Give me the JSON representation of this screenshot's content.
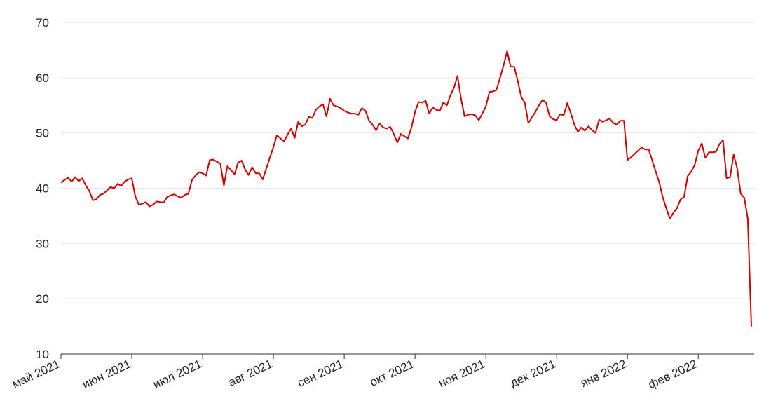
{
  "chart_data": {
    "type": "line",
    "color": "#d40000",
    "grid": true,
    "ylim": [
      10,
      70
    ],
    "yticks": [
      10,
      20,
      30,
      40,
      50,
      60,
      70
    ],
    "categories": [
      "май 2021",
      null,
      null,
      null,
      null,
      null,
      null,
      null,
      null,
      null,
      null,
      null,
      null,
      null,
      null,
      null,
      null,
      null,
      null,
      null,
      "июн 2021",
      null,
      null,
      null,
      null,
      null,
      null,
      null,
      null,
      null,
      null,
      null,
      null,
      null,
      null,
      null,
      null,
      null,
      null,
      null,
      "июл 2021",
      null,
      null,
      null,
      null,
      null,
      null,
      null,
      null,
      null,
      null,
      null,
      null,
      null,
      null,
      null,
      null,
      null,
      null,
      null,
      "авг 2021",
      null,
      null,
      null,
      null,
      null,
      null,
      null,
      null,
      null,
      null,
      null,
      null,
      null,
      null,
      null,
      null,
      null,
      null,
      null,
      "сен 2021",
      null,
      null,
      null,
      null,
      null,
      null,
      null,
      null,
      null,
      null,
      null,
      null,
      null,
      null,
      null,
      null,
      null,
      null,
      null,
      "окт 2021",
      null,
      null,
      null,
      null,
      null,
      null,
      null,
      null,
      null,
      null,
      null,
      null,
      null,
      null,
      null,
      null,
      null,
      null,
      null,
      "ноя 2021",
      null,
      null,
      null,
      null,
      null,
      null,
      null,
      null,
      null,
      null,
      null,
      null,
      null,
      null,
      null,
      null,
      null,
      null,
      null,
      "дек 2021",
      null,
      null,
      null,
      null,
      null,
      null,
      null,
      null,
      null,
      null,
      null,
      null,
      null,
      null,
      null,
      null,
      null,
      null,
      null,
      "янв 2022",
      null,
      null,
      null,
      null,
      null,
      null,
      null,
      null,
      null,
      null,
      null,
      null,
      null,
      null,
      null,
      null,
      null,
      null,
      null,
      "фев 2022",
      null,
      null,
      null,
      null,
      null,
      null,
      null,
      null,
      null,
      null,
      null,
      null,
      null,
      null,
      null
    ],
    "values": [
      41.0,
      41.5,
      41.9,
      41.2,
      42.0,
      41.3,
      41.8,
      40.5,
      39.5,
      37.8,
      38.0,
      38.8,
      39.0,
      39.6,
      40.2,
      40.0,
      40.8,
      40.4,
      41.2,
      41.6,
      41.8,
      38.5,
      37.0,
      37.2,
      37.5,
      36.7,
      37.0,
      37.6,
      37.5,
      37.4,
      38.4,
      38.7,
      38.9,
      38.5,
      38.3,
      38.8,
      39.0,
      41.5,
      42.3,
      42.9,
      42.7,
      42.3,
      45.1,
      45.2,
      44.8,
      44.5,
      40.5,
      44.0,
      43.3,
      42.5,
      44.6,
      45.0,
      43.4,
      42.4,
      43.8,
      42.7,
      42.7,
      41.6,
      43.6,
      45.5,
      47.5,
      49.6,
      49.0,
      48.5,
      49.7,
      50.8,
      49.1,
      52.0,
      51.2,
      51.5,
      52.9,
      52.7,
      54.2,
      54.8,
      55.2,
      53.0,
      56.2,
      55.0,
      54.8,
      54.5,
      54.0,
      53.7,
      53.5,
      53.5,
      53.3,
      54.5,
      54.0,
      52.2,
      51.5,
      50.5,
      51.7,
      51.0,
      50.8,
      51.1,
      49.8,
      48.3,
      49.8,
      49.4,
      49.0,
      51.0,
      53.8,
      55.6,
      55.5,
      55.8,
      53.5,
      54.6,
      54.2,
      54.0,
      55.5,
      55.0,
      56.8,
      58.2,
      60.3,
      56.2,
      53.0,
      53.3,
      53.4,
      53.2,
      52.3,
      53.5,
      54.8,
      57.4,
      57.5,
      57.8,
      60.0,
      62.2,
      64.8,
      62.0,
      62.0,
      59.5,
      56.5,
      55.5,
      51.8,
      52.8,
      53.8,
      55.0,
      56.0,
      55.5,
      53.0,
      52.5,
      52.3,
      53.4,
      53.2,
      55.4,
      53.6,
      51.5,
      50.2,
      51.0,
      50.4,
      51.2,
      50.5,
      50.0,
      52.4,
      52.0,
      52.3,
      52.6,
      51.8,
      51.5,
      52.2,
      52.2,
      45.1,
      45.6,
      46.2,
      46.8,
      47.4,
      47.0,
      47.0,
      45.0,
      43.0,
      41.0,
      38.3,
      36.3,
      34.5,
      35.6,
      36.4,
      38.0,
      38.4,
      42.2,
      43.0,
      44.2,
      46.8,
      48.1,
      45.5,
      46.5,
      46.5,
      46.6,
      48.0,
      48.7,
      41.8,
      42.0,
      46.1,
      43.6,
      39.0,
      38.3,
      34.5,
      15.0
    ]
  }
}
